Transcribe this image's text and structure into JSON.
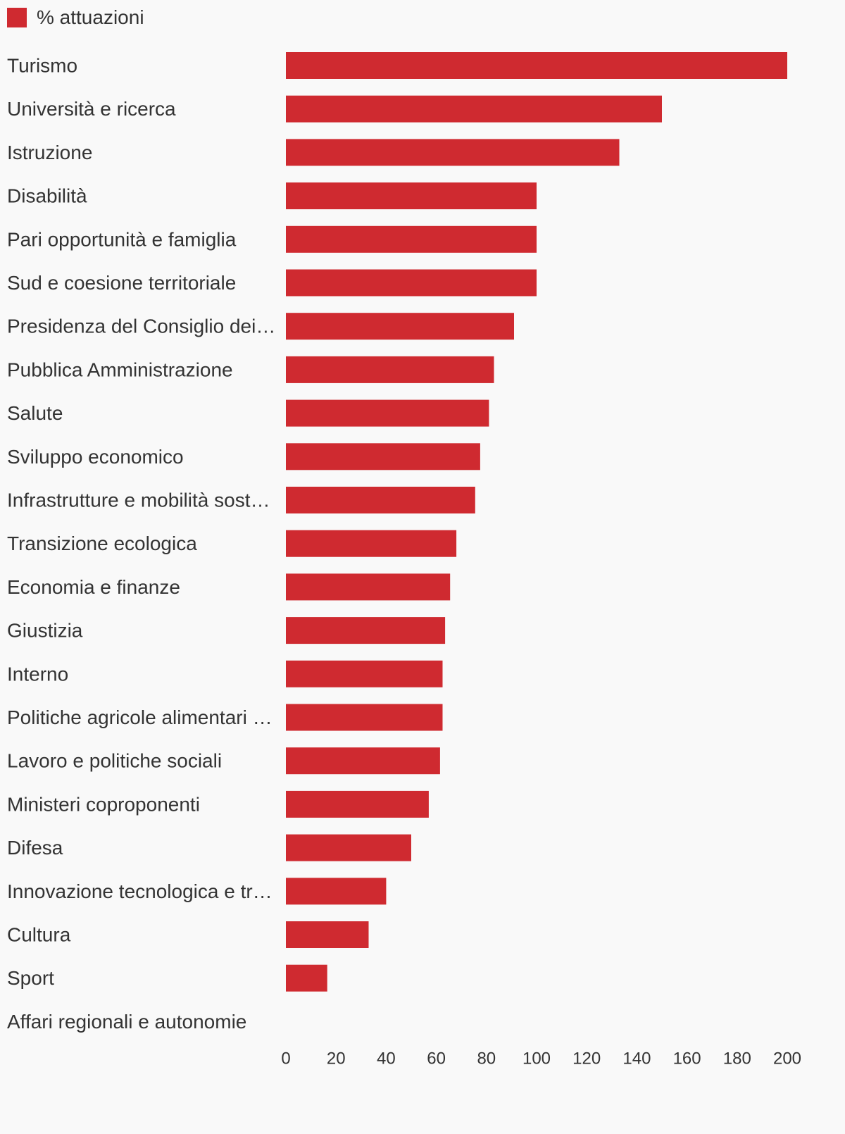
{
  "chart_data": {
    "type": "bar",
    "orientation": "horizontal",
    "categories": [
      "Turismo",
      "Università e ricerca",
      "Istruzione",
      "Disabilità",
      "Pari opportunità e famiglia",
      "Sud e coesione territoriale",
      "Presidenza del Consiglio dei…",
      "Pubblica Amministrazione",
      "Salute",
      "Sviluppo economico",
      "Infrastrutture e mobilità sost…",
      "Transizione ecologica",
      "Economia e finanze",
      "Giustizia",
      "Interno",
      "Politiche agricole alimentari …",
      "Lavoro e politiche sociali",
      "Ministeri coproponenti",
      "Difesa",
      "Innovazione tecnologica e tr…",
      "Cultura",
      "Sport",
      "Affari regionali e autonomie"
    ],
    "series": [
      {
        "name": "% attuazioni",
        "color": "#cf2a30",
        "values": [
          200,
          150,
          133,
          100,
          100,
          100,
          91,
          83,
          81,
          77.5,
          75.5,
          68,
          65.5,
          63.5,
          62.5,
          62.5,
          61.5,
          57,
          50,
          40,
          33,
          16.5,
          0
        ]
      }
    ],
    "xlim": [
      0,
      200
    ],
    "xticks": [
      0,
      20,
      40,
      60,
      80,
      100,
      120,
      140,
      160,
      180,
      200
    ],
    "grid": false,
    "legend_position": "top-left"
  }
}
